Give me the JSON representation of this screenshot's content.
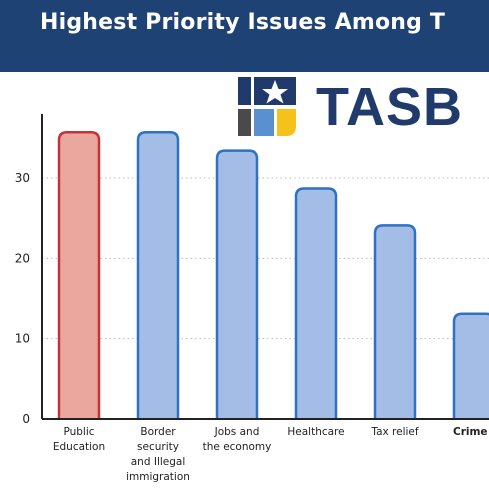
{
  "header": {
    "title": "Highest Priority Issues Among T"
  },
  "logo": {
    "text": "TASB"
  },
  "colors": {
    "header_bg": "#1f4275",
    "highlight_fill": "#e9a79d",
    "highlight_stroke": "#c7323a",
    "bar_fill": "#a4bde6",
    "bar_stroke": "#2f71c4",
    "grid": "#bbbbbb"
  },
  "chart_data": {
    "type": "bar",
    "title": "Highest Priority Issues Among T",
    "categories": [
      "Public\nEducation",
      "Border\nsecurity\nand Illegal\nimmigration",
      "Jobs and\nthe economy",
      "Healthcare",
      "Tax relief",
      "Crime"
    ],
    "values": [
      35.7,
      35.7,
      33.4,
      28.7,
      24.1,
      13.1
    ],
    "highlight_index": 0,
    "yticks": [
      0,
      10,
      20,
      30
    ],
    "ylim": [
      0,
      38
    ],
    "grid": "horizontal dotted",
    "xlabel": "",
    "ylabel": ""
  }
}
